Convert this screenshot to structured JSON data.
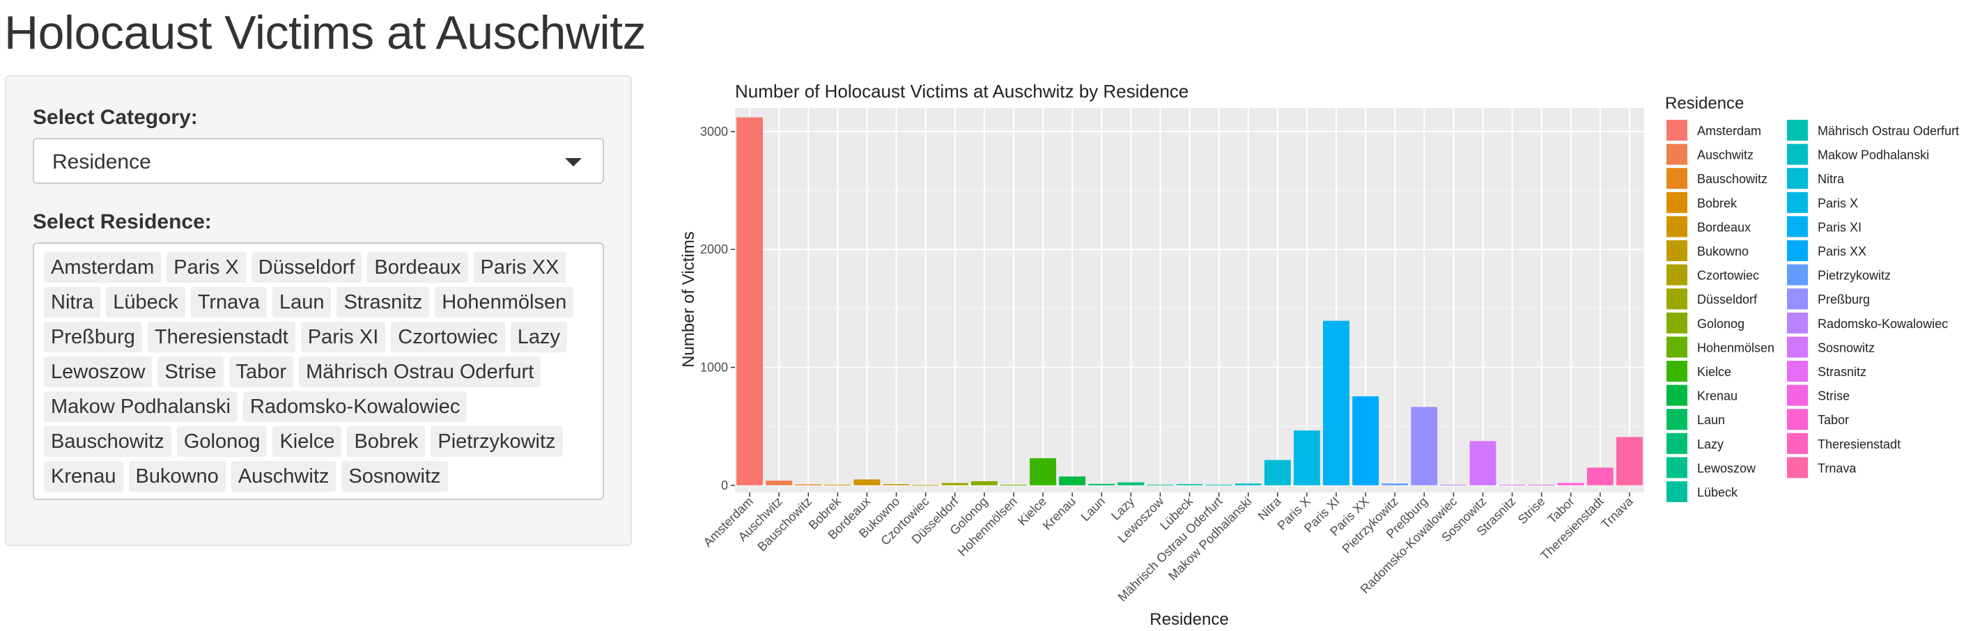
{
  "page": {
    "title": "Holocaust Victims at Auschwitz"
  },
  "controls": {
    "category_label": "Select Category:",
    "category_value": "Residence",
    "residence_label": "Select Residence:",
    "selected_residences": [
      "Amsterdam",
      "Paris X",
      "Düsseldorf",
      "Bordeaux",
      "Paris XX",
      "Nitra",
      "Lübeck",
      "Trnava",
      "Laun",
      "Strasnitz",
      "Hohenmölsen",
      "Preßburg",
      "Theresienstadt",
      "Paris XI",
      "Czortowiec",
      "Lazy",
      "Lewoszow",
      "Strise",
      "Tabor",
      "Mährisch Ostrau Oderfurt",
      "Makow Podhalanski",
      "Radomsko-Kowalowiec",
      "Bauschowitz",
      "Golonog",
      "Kielce",
      "Bobrek",
      "Pietrzykowitz",
      "Krenau",
      "Bukowno",
      "Auschwitz",
      "Sosnowitz"
    ]
  },
  "chart_data": {
    "type": "bar",
    "title": "Number of Holocaust Victims at Auschwitz by Residence",
    "xlabel": "Residence",
    "ylabel": "Number of Victims",
    "ylim": [
      -60,
      3200
    ],
    "yticks": [
      0,
      1000,
      2000,
      3000
    ],
    "grid": true,
    "legend_title": "Residence",
    "legend_position": "right",
    "categories": [
      "Amsterdam",
      "Auschwitz",
      "Bauschowitz",
      "Bobrek",
      "Bordeaux",
      "Bukowno",
      "Czortowiec",
      "Düsseldorf",
      "Golonog",
      "Hohenmölsen",
      "Kielce",
      "Krenau",
      "Laun",
      "Lazy",
      "Lewoszow",
      "Lübeck",
      "Mährisch Ostrau Oderfurt",
      "Makow Podhalanski",
      "Nitra",
      "Paris X",
      "Paris XI",
      "Paris XX",
      "Pietrzykowitz",
      "Preßburg",
      "Radomsko-Kowalowiec",
      "Sosnowitz",
      "Strasnitz",
      "Strise",
      "Tabor",
      "Theresienstadt",
      "Trnava"
    ],
    "values": [
      3120,
      40,
      8,
      5,
      50,
      10,
      3,
      20,
      35,
      4,
      230,
      75,
      12,
      25,
      5,
      10,
      5,
      15,
      215,
      465,
      1395,
      755,
      15,
      665,
      5,
      375,
      5,
      5,
      20,
      150,
      410
    ],
    "colors": [
      "#F8766D",
      "#F07F4E",
      "#E7861B",
      "#DC8D00",
      "#CF9400",
      "#C09B00",
      "#AFA100",
      "#9CA700",
      "#85AD00",
      "#68B100",
      "#39B600",
      "#00BA42",
      "#00BD5F",
      "#00BF76",
      "#00C08B",
      "#00C19F",
      "#00C0B2",
      "#00BFC4",
      "#00BCD6",
      "#00B8E5",
      "#00B2F3",
      "#00ABFD",
      "#619CFF",
      "#9590FF",
      "#B983FF",
      "#D376FF",
      "#E76BF3",
      "#F464E2",
      "#FD61D1",
      "#FF62BC",
      "#FF67A4"
    ]
  }
}
